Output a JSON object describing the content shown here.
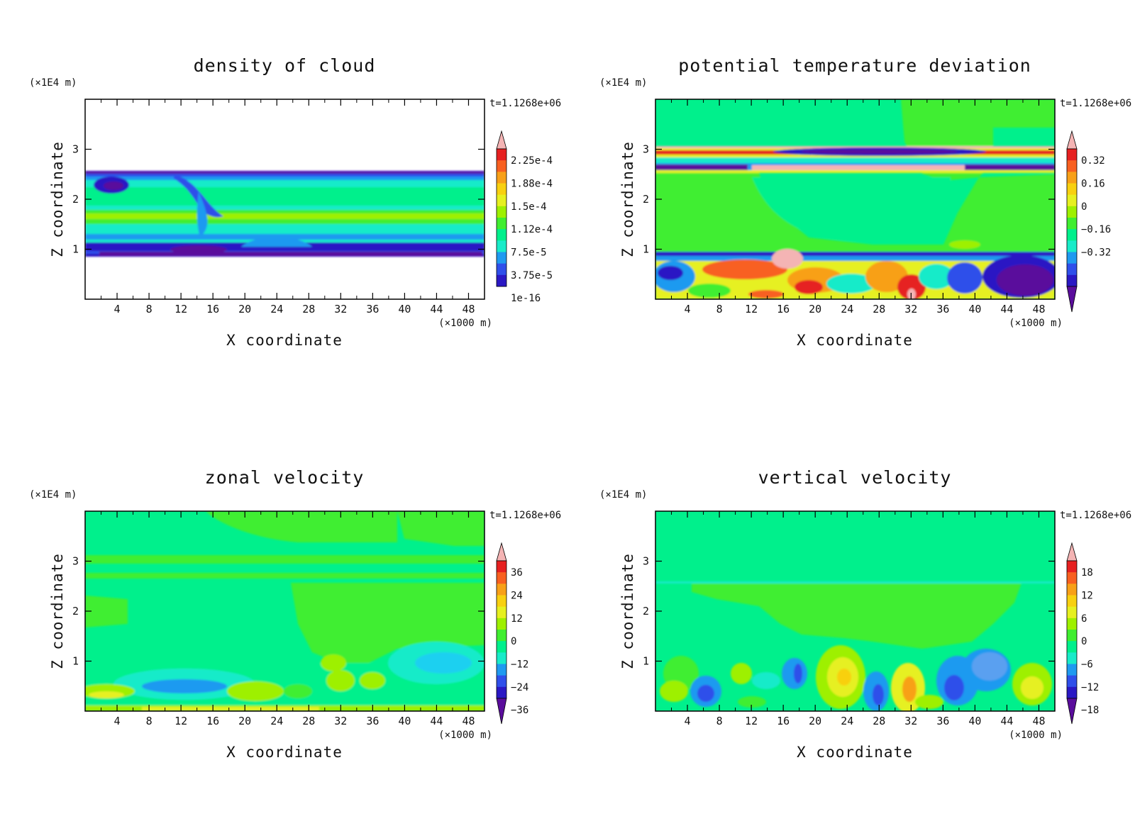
{
  "figure": {
    "colors": {
      "ramp": [
        "#5a0d9c",
        "#2a18c4",
        "#2f4fea",
        "#1f9af0",
        "#19ebc9",
        "#00f08c",
        "#40ee30",
        "#9ef000",
        "#e6f020",
        "#f8d010",
        "#f8a018",
        "#f86020",
        "#e62020",
        "#f4b4b4"
      ],
      "frame": "#000000"
    }
  },
  "chart_data": [
    {
      "type": "heatmap",
      "title": "density of cloud",
      "xlabel": "X coordinate",
      "ylabel": "Z coordinate",
      "x_unit": "(×1000 m)",
      "y_unit": "(×1E4 m)",
      "time_label": "t=1.1268e+06",
      "x_ticks": [
        "4",
        "8",
        "12",
        "16",
        "20",
        "24",
        "28",
        "32",
        "36",
        "40",
        "44",
        "48"
      ],
      "y_ticks": [
        "1",
        "2",
        "3"
      ],
      "xlim": [
        0,
        50
      ],
      "ylim": [
        0,
        4
      ],
      "colorbar_labels": [
        "2.25e-4",
        "1.88e-4",
        "1.5e-4",
        "1.12e-4",
        "7.5e-5",
        "3.75e-5",
        "1e-16"
      ],
      "colorbar_style": "bottom-capped",
      "field_description": "cloud layer between z≈0.9 and z≈2.55 (x1E4 m)"
    },
    {
      "type": "heatmap",
      "title": "potential temperature deviation",
      "xlabel": "X coordinate",
      "ylabel": "Z coordinate",
      "x_unit": "(×1000 m)",
      "y_unit": "(×1E4 m)",
      "time_label": "t=1.1268e+06",
      "x_ticks": [
        "4",
        "8",
        "12",
        "16",
        "20",
        "24",
        "28",
        "32",
        "36",
        "40",
        "44",
        "48"
      ],
      "y_ticks": [
        "1",
        "2",
        "3"
      ],
      "xlim": [
        0,
        50
      ],
      "ylim": [
        0,
        4
      ],
      "colorbar_labels": [
        "0.32",
        "0.16",
        "0",
        "−0.16",
        "−0.32"
      ],
      "colorbar_style": "both-ends"
    },
    {
      "type": "heatmap",
      "title": "zonal velocity",
      "xlabel": "X coordinate",
      "ylabel": "Z coordinate",
      "x_unit": "(×1000 m)",
      "y_unit": "(×1E4 m)",
      "time_label": "t=1.1268e+06",
      "x_ticks": [
        "4",
        "8",
        "12",
        "16",
        "20",
        "24",
        "28",
        "32",
        "36",
        "40",
        "44",
        "48"
      ],
      "y_ticks": [
        "1",
        "2",
        "3"
      ],
      "xlim": [
        0,
        50
      ],
      "ylim": [
        0,
        4
      ],
      "colorbar_labels": [
        "36",
        "24",
        "12",
        "0",
        "−12",
        "−24",
        "−36"
      ],
      "colorbar_style": "both-ends"
    },
    {
      "type": "heatmap",
      "title": "vertical velocity",
      "xlabel": "X coordinate",
      "ylabel": "Z coordinate",
      "x_unit": "(×1000 m)",
      "y_unit": "(×1E4 m)",
      "time_label": "t=1.1268e+06",
      "x_ticks": [
        "4",
        "8",
        "12",
        "16",
        "20",
        "24",
        "28",
        "32",
        "36",
        "40",
        "44",
        "48"
      ],
      "y_ticks": [
        "1",
        "2",
        "3"
      ],
      "xlim": [
        0,
        50
      ],
      "ylim": [
        0,
        4
      ],
      "colorbar_labels": [
        "18",
        "12",
        "6",
        "0",
        "−6",
        "−12",
        "−18"
      ],
      "colorbar_style": "both-ends"
    }
  ]
}
